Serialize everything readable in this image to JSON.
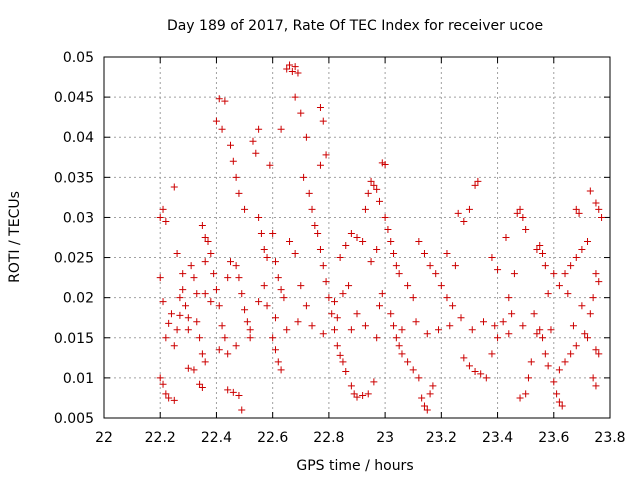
{
  "chart_data": {
    "type": "scatter",
    "title": "Day 189 of 2017, Rate Of TEC Index for receiver ucoe",
    "xlabel": "GPS time / hours",
    "ylabel": "ROTI / TECUs",
    "xlim": [
      22,
      23.8
    ],
    "ylim": [
      0.005,
      0.05
    ],
    "x_ticks": [
      22,
      22.2,
      22.4,
      22.6,
      22.8,
      23,
      23.2,
      23.4,
      23.6,
      23.8
    ],
    "x_tick_labels": [
      "22",
      "22.2",
      "22.4",
      "22.6",
      "22.8",
      "23",
      "23.2",
      "23.4",
      "23.6",
      "23.8"
    ],
    "y_ticks": [
      0.005,
      0.01,
      0.015,
      0.02,
      0.025,
      0.03,
      0.035,
      0.04,
      0.045,
      0.05
    ],
    "y_tick_labels": [
      "0.005",
      "0.01",
      "0.015",
      "0.02",
      "0.025",
      "0.03",
      "0.035",
      "0.04",
      "0.045",
      "0.05"
    ],
    "grid": true,
    "marker": "+",
    "color": "#cc0000",
    "series": [
      {
        "name": "ucoe",
        "points": [
          [
            22.2,
            0.03
          ],
          [
            22.21,
            0.031
          ],
          [
            22.22,
            0.0295
          ],
          [
            22.25,
            0.0338
          ],
          [
            22.2,
            0.0225
          ],
          [
            22.21,
            0.0195
          ],
          [
            22.22,
            0.015
          ],
          [
            22.23,
            0.0168
          ],
          [
            22.24,
            0.018
          ],
          [
            22.25,
            0.014
          ],
          [
            22.26,
            0.016
          ],
          [
            22.27,
            0.02
          ],
          [
            22.28,
            0.021
          ],
          [
            22.22,
            0.008
          ],
          [
            22.23,
            0.0075
          ],
          [
            22.25,
            0.0072
          ],
          [
            22.2,
            0.01
          ],
          [
            22.21,
            0.0092
          ],
          [
            22.26,
            0.0255
          ],
          [
            22.28,
            0.023
          ],
          [
            22.29,
            0.019
          ],
          [
            22.3,
            0.0175
          ],
          [
            22.31,
            0.024
          ],
          [
            22.32,
            0.0225
          ],
          [
            22.33,
            0.017
          ],
          [
            22.34,
            0.015
          ],
          [
            22.35,
            0.013
          ],
          [
            22.36,
            0.012
          ],
          [
            22.3,
            0.0112
          ],
          [
            22.32,
            0.011
          ],
          [
            22.34,
            0.0092
          ],
          [
            22.35,
            0.0088
          ],
          [
            22.36,
            0.0245
          ],
          [
            22.37,
            0.027
          ],
          [
            22.38,
            0.0255
          ],
          [
            22.39,
            0.023
          ],
          [
            22.4,
            0.021
          ],
          [
            22.41,
            0.019
          ],
          [
            22.42,
            0.0165
          ],
          [
            22.43,
            0.015
          ],
          [
            22.44,
            0.013
          ],
          [
            22.35,
            0.029
          ],
          [
            22.36,
            0.0275
          ],
          [
            22.4,
            0.042
          ],
          [
            22.41,
            0.0448
          ],
          [
            22.43,
            0.0445
          ],
          [
            22.42,
            0.041
          ],
          [
            22.45,
            0.039
          ],
          [
            22.46,
            0.037
          ],
          [
            22.47,
            0.035
          ],
          [
            22.48,
            0.033
          ],
          [
            22.5,
            0.031
          ],
          [
            22.44,
            0.0085
          ],
          [
            22.46,
            0.0082
          ],
          [
            22.48,
            0.0078
          ],
          [
            22.49,
            0.006
          ],
          [
            22.47,
            0.024
          ],
          [
            22.48,
            0.0225
          ],
          [
            22.49,
            0.0205
          ],
          [
            22.5,
            0.0185
          ],
          [
            22.51,
            0.017
          ],
          [
            22.52,
            0.016
          ],
          [
            22.53,
            0.0395
          ],
          [
            22.55,
            0.041
          ],
          [
            22.54,
            0.038
          ],
          [
            22.55,
            0.03
          ],
          [
            22.56,
            0.028
          ],
          [
            22.57,
            0.026
          ],
          [
            22.58,
            0.025
          ],
          [
            22.59,
            0.0365
          ],
          [
            22.6,
            0.028
          ],
          [
            22.61,
            0.0245
          ],
          [
            22.62,
            0.0225
          ],
          [
            22.63,
            0.021
          ],
          [
            22.64,
            0.02
          ],
          [
            22.6,
            0.015
          ],
          [
            22.61,
            0.0135
          ],
          [
            22.62,
            0.012
          ],
          [
            22.63,
            0.011
          ],
          [
            22.65,
            0.0485
          ],
          [
            22.66,
            0.049
          ],
          [
            22.67,
            0.0482
          ],
          [
            22.68,
            0.0488
          ],
          [
            22.69,
            0.048
          ],
          [
            22.63,
            0.041
          ],
          [
            22.68,
            0.045
          ],
          [
            22.7,
            0.043
          ],
          [
            22.72,
            0.04
          ],
          [
            22.71,
            0.035
          ],
          [
            22.73,
            0.033
          ],
          [
            22.74,
            0.031
          ],
          [
            22.75,
            0.029
          ],
          [
            22.77,
            0.0437
          ],
          [
            22.78,
            0.042
          ],
          [
            22.77,
            0.0365
          ],
          [
            22.79,
            0.0378
          ],
          [
            22.76,
            0.028
          ],
          [
            22.77,
            0.026
          ],
          [
            22.78,
            0.024
          ],
          [
            22.79,
            0.022
          ],
          [
            22.8,
            0.02
          ],
          [
            22.81,
            0.018
          ],
          [
            22.82,
            0.016
          ],
          [
            22.83,
            0.014
          ],
          [
            22.84,
            0.0128
          ],
          [
            22.85,
            0.012
          ],
          [
            22.86,
            0.0108
          ],
          [
            22.88,
            0.009
          ],
          [
            22.89,
            0.008
          ],
          [
            22.9,
            0.0076
          ],
          [
            22.92,
            0.0078
          ],
          [
            22.94,
            0.008
          ],
          [
            22.96,
            0.0095
          ],
          [
            22.84,
            0.025
          ],
          [
            22.86,
            0.0265
          ],
          [
            22.88,
            0.028
          ],
          [
            22.9,
            0.0275
          ],
          [
            22.92,
            0.027
          ],
          [
            22.93,
            0.031
          ],
          [
            22.94,
            0.033
          ],
          [
            22.95,
            0.0345
          ],
          [
            22.96,
            0.034
          ],
          [
            22.97,
            0.0335
          ],
          [
            22.98,
            0.032
          ],
          [
            22.99,
            0.0368
          ],
          [
            23.0,
            0.0366
          ],
          [
            23.0,
            0.03
          ],
          [
            23.01,
            0.0285
          ],
          [
            23.02,
            0.027
          ],
          [
            23.03,
            0.0255
          ],
          [
            23.04,
            0.024
          ],
          [
            23.05,
            0.023
          ],
          [
            23.02,
            0.018
          ],
          [
            23.03,
            0.0165
          ],
          [
            23.04,
            0.015
          ],
          [
            23.05,
            0.014
          ],
          [
            23.06,
            0.013
          ],
          [
            23.08,
            0.012
          ],
          [
            23.1,
            0.011
          ],
          [
            23.12,
            0.01
          ],
          [
            23.13,
            0.0075
          ],
          [
            23.14,
            0.0065
          ],
          [
            23.15,
            0.006
          ],
          [
            23.16,
            0.008
          ],
          [
            23.17,
            0.009
          ],
          [
            23.12,
            0.027
          ],
          [
            23.14,
            0.0255
          ],
          [
            23.16,
            0.024
          ],
          [
            23.18,
            0.023
          ],
          [
            23.2,
            0.0215
          ],
          [
            23.22,
            0.02
          ],
          [
            23.24,
            0.019
          ],
          [
            23.26,
            0.0305
          ],
          [
            23.28,
            0.0295
          ],
          [
            23.3,
            0.031
          ],
          [
            23.32,
            0.034
          ],
          [
            23.33,
            0.0345
          ],
          [
            23.28,
            0.0125
          ],
          [
            23.3,
            0.0115
          ],
          [
            23.32,
            0.0108
          ],
          [
            23.34,
            0.0105
          ],
          [
            23.36,
            0.01
          ],
          [
            23.38,
            0.013
          ],
          [
            23.4,
            0.015
          ],
          [
            23.42,
            0.017
          ],
          [
            23.44,
            0.02
          ],
          [
            23.46,
            0.023
          ],
          [
            23.47,
            0.0305
          ],
          [
            23.48,
            0.031
          ],
          [
            23.49,
            0.03
          ],
          [
            23.5,
            0.0285
          ],
          [
            23.48,
            0.0075
          ],
          [
            23.5,
            0.008
          ],
          [
            23.51,
            0.01
          ],
          [
            23.52,
            0.012
          ],
          [
            23.54,
            0.026
          ],
          [
            23.55,
            0.0265
          ],
          [
            23.56,
            0.0255
          ],
          [
            23.57,
            0.024
          ],
          [
            23.55,
            0.016
          ],
          [
            23.56,
            0.015
          ],
          [
            23.57,
            0.013
          ],
          [
            23.58,
            0.0115
          ],
          [
            23.6,
            0.0095
          ],
          [
            23.61,
            0.008
          ],
          [
            23.62,
            0.007
          ],
          [
            23.63,
            0.0065
          ],
          [
            23.62,
            0.011
          ],
          [
            23.64,
            0.012
          ],
          [
            23.66,
            0.013
          ],
          [
            23.68,
            0.014
          ],
          [
            23.64,
            0.023
          ],
          [
            23.66,
            0.024
          ],
          [
            23.68,
            0.025
          ],
          [
            23.7,
            0.026
          ],
          [
            23.72,
            0.027
          ],
          [
            23.68,
            0.031
          ],
          [
            23.69,
            0.0305
          ],
          [
            23.73,
            0.0333
          ],
          [
            23.75,
            0.0318
          ],
          [
            23.76,
            0.031
          ],
          [
            23.77,
            0.03
          ],
          [
            23.75,
            0.023
          ],
          [
            23.76,
            0.022
          ],
          [
            23.74,
            0.02
          ],
          [
            23.73,
            0.018
          ],
          [
            23.72,
            0.015
          ],
          [
            23.75,
            0.0135
          ],
          [
            23.76,
            0.013
          ],
          [
            23.74,
            0.01
          ],
          [
            23.75,
            0.009
          ],
          [
            23.22,
            0.0255
          ],
          [
            23.25,
            0.024
          ],
          [
            23.1,
            0.02
          ],
          [
            23.08,
            0.0215
          ],
          [
            22.95,
            0.0245
          ],
          [
            22.97,
            0.026
          ],
          [
            22.99,
            0.0205
          ],
          [
            22.98,
            0.019
          ],
          [
            22.9,
            0.018
          ],
          [
            22.87,
            0.0215
          ],
          [
            22.85,
            0.0205
          ],
          [
            22.82,
            0.0195
          ],
          [
            22.7,
            0.0215
          ],
          [
            22.72,
            0.019
          ],
          [
            22.66,
            0.027
          ],
          [
            22.68,
            0.0255
          ],
          [
            22.57,
            0.0215
          ],
          [
            22.55,
            0.0195
          ],
          [
            22.45,
            0.0245
          ],
          [
            22.44,
            0.0225
          ],
          [
            22.38,
            0.0195
          ],
          [
            22.36,
            0.0205
          ],
          [
            23.38,
            0.025
          ],
          [
            23.4,
            0.0235
          ],
          [
            23.43,
            0.0275
          ],
          [
            23.45,
            0.018
          ],
          [
            23.53,
            0.018
          ],
          [
            23.58,
            0.0205
          ],
          [
            23.6,
            0.023
          ],
          [
            23.62,
            0.0215
          ],
          [
            23.65,
            0.0205
          ],
          [
            23.7,
            0.019
          ],
          [
            22.27,
            0.0178
          ],
          [
            22.3,
            0.016
          ],
          [
            22.33,
            0.0205
          ],
          [
            22.41,
            0.0135
          ],
          [
            22.47,
            0.014
          ],
          [
            22.52,
            0.015
          ],
          [
            22.58,
            0.019
          ],
          [
            22.61,
            0.0175
          ],
          [
            22.65,
            0.016
          ],
          [
            22.69,
            0.017
          ],
          [
            22.74,
            0.0165
          ],
          [
            22.78,
            0.0155
          ],
          [
            22.83,
            0.0175
          ],
          [
            22.88,
            0.016
          ],
          [
            22.93,
            0.0165
          ],
          [
            22.97,
            0.015
          ],
          [
            23.06,
            0.016
          ],
          [
            23.11,
            0.017
          ],
          [
            23.15,
            0.0155
          ],
          [
            23.19,
            0.016
          ],
          [
            23.23,
            0.0165
          ],
          [
            23.27,
            0.0175
          ],
          [
            23.31,
            0.016
          ],
          [
            23.35,
            0.017
          ],
          [
            23.39,
            0.0165
          ],
          [
            23.44,
            0.0155
          ],
          [
            23.49,
            0.0165
          ],
          [
            23.54,
            0.0155
          ],
          [
            23.59,
            0.016
          ],
          [
            23.67,
            0.0165
          ],
          [
            23.71,
            0.0155
          ]
        ]
      }
    ]
  }
}
